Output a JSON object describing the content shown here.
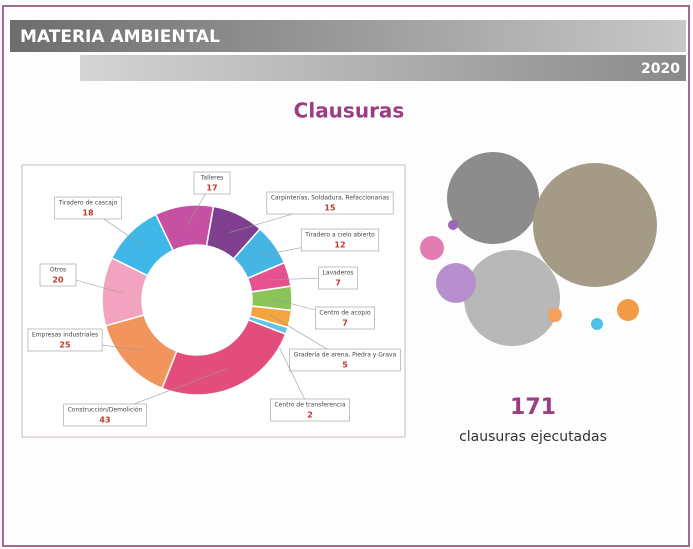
{
  "header": {
    "title": "MATERIA AMBIENTAL",
    "year": "2020"
  },
  "chart_data": {
    "type": "donut",
    "title": "Clausuras",
    "categories": [
      "Talleres",
      "Carpinterías, Soldadura, Refaccionarias",
      "Tiradero a cielo abierto",
      "Lavaderos",
      "Centro de acopio",
      "Gradería de arena, Piedra y Grava",
      "Centro de transferencia",
      "Construcción/Demolición",
      "Empresas industriales",
      "Otros",
      "Tiradero de cascajo"
    ],
    "values": [
      17,
      15,
      12,
      7,
      7,
      5,
      2,
      43,
      25,
      20,
      18
    ],
    "colors": [
      "#c650a2",
      "#7d3f8e",
      "#45b5e4",
      "#e5528f",
      "#8cc45a",
      "#f2a53c",
      "#5fc3ea",
      "#e24d7c",
      "#f1955c",
      "#f2a3c0",
      "#3fb7e8"
    ]
  },
  "summary": {
    "total": "171",
    "label": "clausuras ejecutadas"
  }
}
